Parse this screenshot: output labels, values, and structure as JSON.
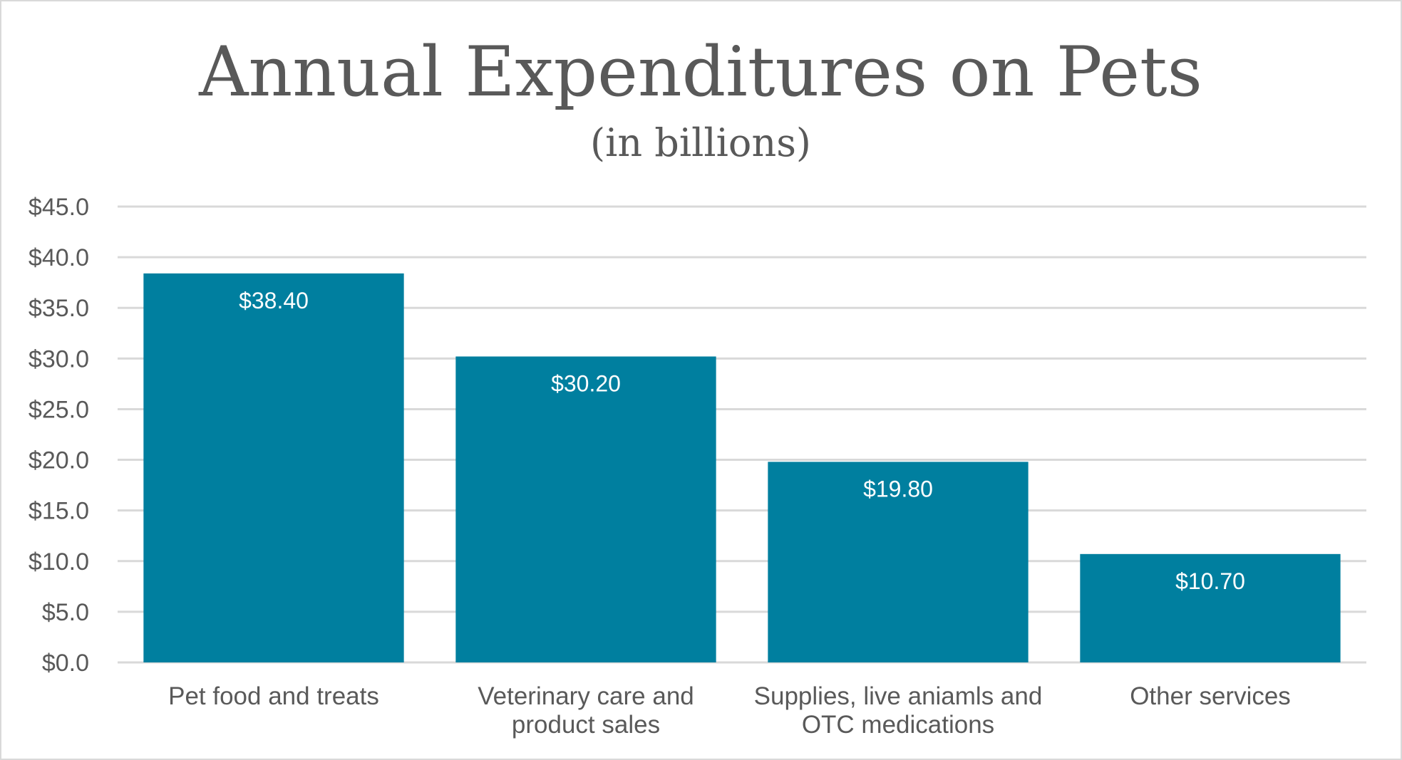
{
  "chart_data": {
    "type": "bar",
    "title": "Annual Expenditures on Pets",
    "subtitle": "(in billions)",
    "categories": [
      [
        "Pet food and treats"
      ],
      [
        "Veterinary care and",
        "product sales"
      ],
      [
        "Supplies, live aniamls and",
        "OTC medications"
      ],
      [
        "Other services"
      ]
    ],
    "values": [
      38.4,
      30.2,
      19.8,
      10.7
    ],
    "data_labels": [
      "$38.40",
      "$30.20",
      "$19.80",
      "$10.70"
    ],
    "y_ticks": [
      0,
      5,
      10,
      15,
      20,
      25,
      30,
      35,
      40,
      45
    ],
    "y_tick_labels": [
      "$0.0",
      "$5.0",
      "$10.0",
      "$15.0",
      "$20.0",
      "$25.0",
      "$30.0",
      "$35.0",
      "$40.0",
      "$45.0"
    ],
    "ylim": [
      0,
      45
    ],
    "xlabel": "",
    "ylabel": "",
    "grid": true,
    "legend": "none",
    "colors": {
      "bar": "#007f9f",
      "grid": "#d9d9d9",
      "text": "#595959",
      "data_label": "#ffffff"
    }
  }
}
